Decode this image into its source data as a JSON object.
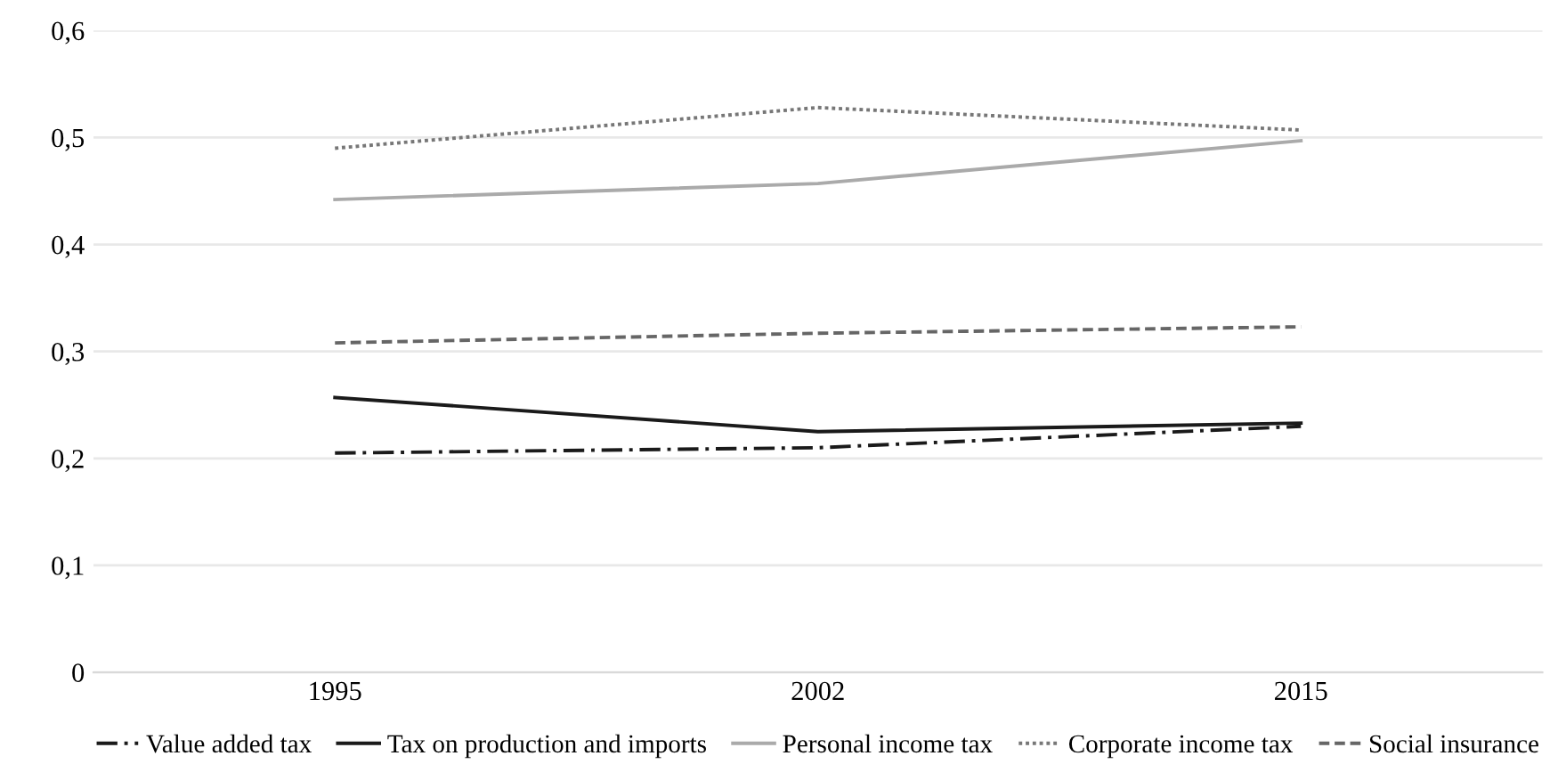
{
  "chart_data": {
    "type": "line",
    "categories": [
      "1995",
      "2002",
      "2015"
    ],
    "ylim": [
      0,
      0.6
    ],
    "yticks": [
      {
        "value": 0,
        "label": "0"
      },
      {
        "value": 0.1,
        "label": "0,1"
      },
      {
        "value": 0.2,
        "label": "0,2"
      },
      {
        "value": 0.3,
        "label": "0,3"
      },
      {
        "value": 0.4,
        "label": "0,4"
      },
      {
        "value": 0.5,
        "label": "0,5"
      },
      {
        "value": 0.6,
        "label": "0,6"
      }
    ],
    "grid": "y",
    "legend": "bottom",
    "series": [
      {
        "name": "Value added tax",
        "color": "#1a1a1a",
        "line_style": "dashdot",
        "values": [
          0.205,
          0.21,
          0.23
        ]
      },
      {
        "name": "Tax on production and imports",
        "color": "#1a1a1a",
        "line_style": "solid",
        "values": [
          0.257,
          0.225,
          0.233
        ]
      },
      {
        "name": "Personal income tax",
        "color": "#aaaaaa",
        "line_style": "solid",
        "values": [
          0.442,
          0.457,
          0.497
        ]
      },
      {
        "name": "Corporate income tax",
        "color": "#777777",
        "line_style": "dotted",
        "values": [
          0.49,
          0.528,
          0.507
        ]
      },
      {
        "name": "Social insurance",
        "color": "#666666",
        "line_style": "dashed",
        "values": [
          0.308,
          0.317,
          0.323
        ]
      }
    ]
  }
}
